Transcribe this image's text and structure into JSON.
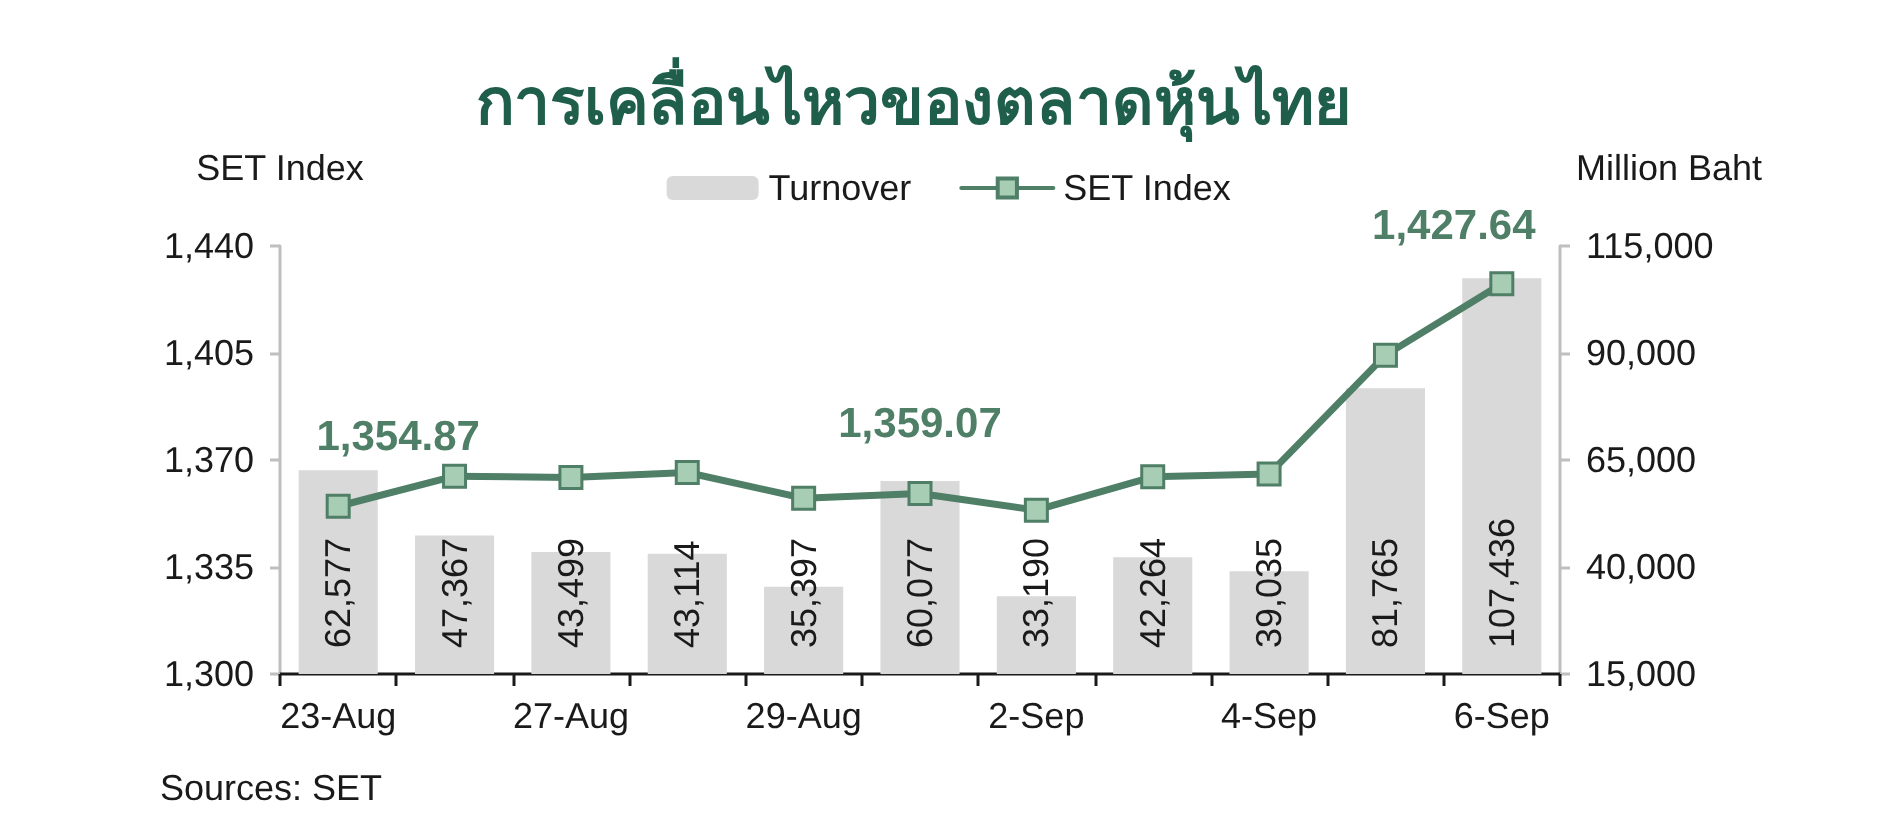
{
  "chart_data": {
    "type": "bar",
    "title": "การเคลื่อนไหวของตลาดหุ้นไทย",
    "ylabel": "SET Index",
    "y2label": "Million Baht",
    "categories": [
      "23-Aug",
      null,
      "27-Aug",
      null,
      "29-Aug",
      null,
      "2-Sep",
      null,
      "4-Sep",
      null,
      "6-Sep"
    ],
    "series": [
      {
        "name": "Turnover",
        "axis": "y2",
        "color": "#d9d9d9",
        "values": [
          62577,
          47367,
          43499,
          43114,
          35397,
          60077,
          33190,
          42264,
          39035,
          81765,
          107436
        ],
        "value_labels": [
          "62,577",
          "47,367",
          "43,499",
          "43,114",
          "35,397",
          "60,077",
          "33,190",
          "42,264",
          "39,035",
          "81,765",
          "107,436"
        ]
      },
      {
        "name": "SET Index",
        "type": "line",
        "color": "#4f7f66",
        "marker": "square",
        "values": [
          1354.87,
          1364.7,
          1364.3,
          1365.9,
          1357.5,
          1359.07,
          1353.6,
          1364.5,
          1365.4,
          1404.3,
          1427.64
        ],
        "value_labels": [
          "1,354.87",
          null,
          null,
          null,
          null,
          "1,359.07",
          null,
          null,
          null,
          null,
          "1,427.64"
        ]
      }
    ],
    "ylim": [
      1300,
      1440
    ],
    "yticks": [
      {
        "value": 1300,
        "label": "1,300"
      },
      {
        "value": 1335,
        "label": "1,335"
      },
      {
        "value": 1370,
        "label": "1,370"
      },
      {
        "value": 1405,
        "label": "1,405"
      },
      {
        "value": 1440,
        "label": "1,440"
      }
    ],
    "y2lim": [
      15000,
      115000
    ],
    "y2ticks": [
      {
        "value": 15000,
        "label": "15,000"
      },
      {
        "value": 40000,
        "label": "40,000"
      },
      {
        "value": 65000,
        "label": "65,000"
      },
      {
        "value": 90000,
        "label": "90,000"
      },
      {
        "value": 115000,
        "label": "115,000"
      }
    ],
    "legend": "top",
    "annotations": [
      "Sources: SET"
    ]
  }
}
